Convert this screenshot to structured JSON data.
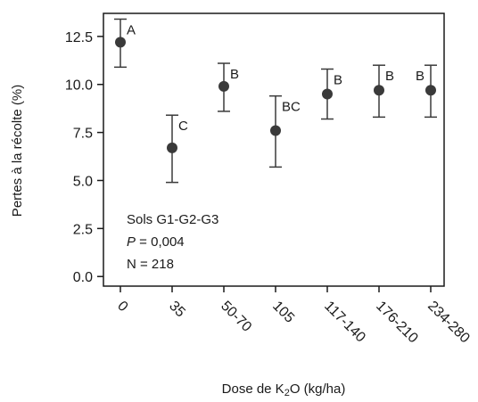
{
  "chart_data": {
    "type": "scatter",
    "xlabel_pre": "Dose de K",
    "xlabel_sub": "2",
    "xlabel_post": "O (kg/ha)",
    "ylabel": "Pertes à la récolte (%)",
    "ylim": [
      -0.5,
      13.7
    ],
    "yticks": [
      "0.0",
      "2.5",
      "5.0",
      "7.5",
      "10.0",
      "12.5"
    ],
    "categories": [
      "0",
      "35",
      "50-70",
      "105",
      "117-140",
      "176-210",
      "234-280"
    ],
    "points": [
      {
        "category": "0",
        "mean": 12.2,
        "lower": 10.9,
        "upper": 13.4,
        "group": "A"
      },
      {
        "category": "35",
        "mean": 6.7,
        "lower": 4.9,
        "upper": 8.4,
        "group": "C"
      },
      {
        "category": "50-70",
        "mean": 9.9,
        "lower": 8.6,
        "upper": 11.1,
        "group": "B"
      },
      {
        "category": "105",
        "mean": 7.6,
        "lower": 5.7,
        "upper": 9.4,
        "group": "BC"
      },
      {
        "category": "117-140",
        "mean": 9.5,
        "lower": 8.2,
        "upper": 10.8,
        "group": "B"
      },
      {
        "category": "176-210",
        "mean": 9.7,
        "lower": 8.3,
        "upper": 11.0,
        "group": "B"
      },
      {
        "category": "234-280",
        "mean": 9.7,
        "lower": 8.3,
        "upper": 11.0,
        "group": "B"
      }
    ],
    "annotation": {
      "line1": "Sols G1-G2-G3",
      "line2_italic": "P",
      "line2_rest": " = 0,004",
      "line3": "N = 218"
    },
    "grid": false,
    "legend": "none",
    "colors": {
      "marker": "#3a3a3a",
      "axis": "#1a1a1a"
    }
  }
}
